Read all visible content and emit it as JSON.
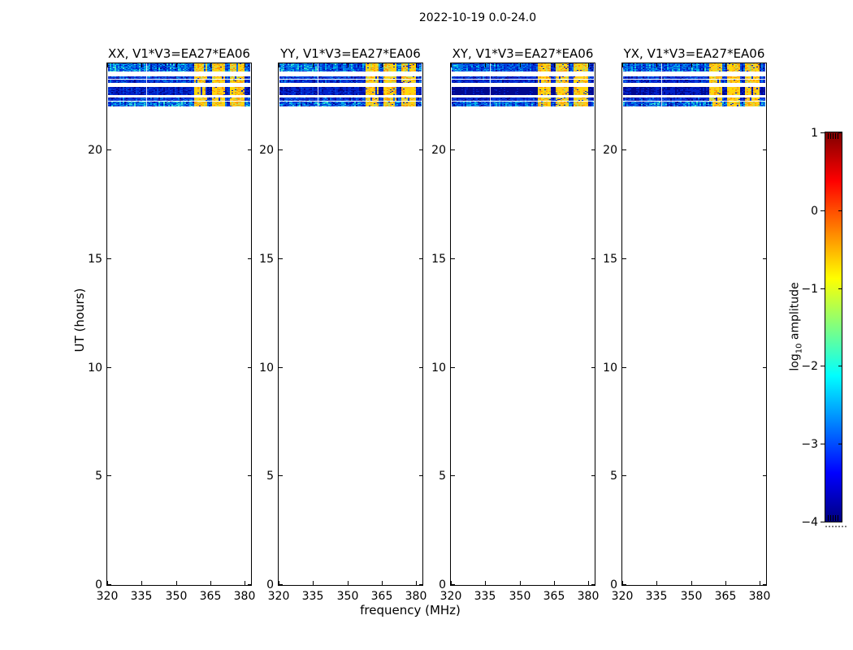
{
  "figure": {
    "title": "2022-10-19 0.0-24.0",
    "background": "#ffffff",
    "text_color": "#000000"
  },
  "chart_data": {
    "type": "heatmap",
    "title": "2022-10-19 0.0-24.0",
    "xlabel": "frequency (MHz)",
    "ylabel": "UT (hours)",
    "grid": false,
    "x_range": [
      320,
      382.7
    ],
    "y_range": [
      0,
      24
    ],
    "x_ticks": [
      320,
      335,
      350,
      365,
      380
    ],
    "x_tick_labels": [
      "320",
      "335",
      "350",
      "365",
      "380"
    ],
    "y_ticks": [
      0,
      5,
      10,
      15,
      20
    ],
    "y_tick_labels": [
      "0",
      "5",
      "10",
      "15",
      "20"
    ],
    "panels": [
      {
        "id": "xx",
        "title": "XX, V1*V3=EA27*EA06",
        "noise_darkness": 0.15
      },
      {
        "id": "yy",
        "title": "YY, V1*V3=EA27*EA06",
        "noise_darkness": 0.3
      },
      {
        "id": "xy",
        "title": "XY, V1*V3=EA27*EA06",
        "noise_darkness": 0.85
      },
      {
        "id": "yx",
        "title": "YX, V1*V3=EA27*EA06",
        "noise_darkness": 0.55
      }
    ],
    "stripes": [
      {
        "ut_start": 23.59,
        "ut_end": 24.0,
        "style": "noisy"
      },
      {
        "ut_start": 23.25,
        "ut_end": 23.37,
        "style": "thin"
      },
      {
        "ut_start": 23.06,
        "ut_end": 23.22,
        "style": "thin"
      },
      {
        "ut_start": 22.5,
        "ut_end": 22.89,
        "style": "bright"
      },
      {
        "ut_start": 22.23,
        "ut_end": 22.38,
        "style": "thin"
      },
      {
        "ut_start": 21.97,
        "ut_end": 22.2,
        "style": "medium"
      }
    ],
    "rfi_band": {
      "freq_start": 357.6,
      "freq_end": 379.4,
      "gap_freqs": [
        [
          363.6,
          365.5
        ],
        [
          371.1,
          373.3
        ]
      ]
    },
    "flagged_channel_freq": 337,
    "palette": {
      "blues": [
        "#000890",
        "#0020c8",
        "#0040dc",
        "#0078e6",
        "#00b4e6",
        "#3ce0d2"
      ],
      "warms": [
        "#ffdc00",
        "#ffc81e",
        "#ff9c00",
        "#c8dc50",
        "#96d264"
      ]
    },
    "colorbar": {
      "label_prefix": "log",
      "label_sub": "10",
      "label_suffix": " amplitude",
      "colormap": "jet",
      "range": [
        -4,
        1
      ],
      "ticks": [
        1,
        0,
        -1,
        -2,
        -3,
        -4
      ],
      "tick_labels": [
        "1",
        "0",
        "−1",
        "−2",
        "−3",
        "−4"
      ],
      "gradient_stops": [
        {
          "pos": 0.0,
          "color": "#000080"
        },
        {
          "pos": 0.125,
          "color": "#0000ff"
        },
        {
          "pos": 0.375,
          "color": "#00ffff"
        },
        {
          "pos": 0.5,
          "color": "#80ff80"
        },
        {
          "pos": 0.625,
          "color": "#ffff00"
        },
        {
          "pos": 0.875,
          "color": "#ff0000"
        },
        {
          "pos": 1.0,
          "color": "#800000"
        }
      ]
    }
  }
}
